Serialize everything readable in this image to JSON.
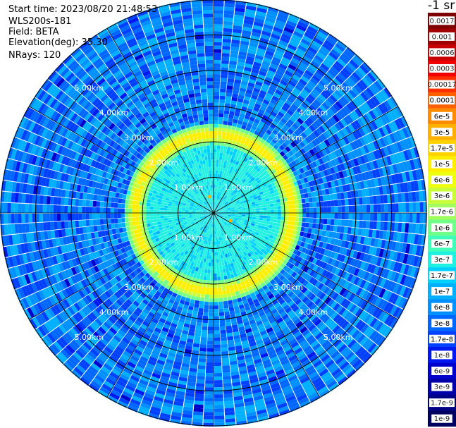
{
  "info": {
    "start_time": "Start time: 2023/08/20 21:48:53",
    "device": "WLS200s-181",
    "field": "Field: BETA",
    "elevation": "Elevation(deg): 35.30",
    "nrays": "NRays: 120"
  },
  "colorbar": {
    "unit": "-1 sr",
    "labels": [
      "0.0017",
      "0.001",
      "0.0006",
      "0.0003",
      "0.00017",
      "0.0001",
      "6e-5",
      "3e-5",
      "1.7e-5",
      "1e-5",
      "6e-6",
      "3e-6",
      "1.7e-6",
      "1e-6",
      "6e-7",
      "3e-7",
      "1.7e-7",
      "1e-7",
      "6e-8",
      "3e-8",
      "1.7e-8",
      "1e-8",
      "6e-9",
      "3e-9",
      "1.7e-9",
      "1e-9"
    ],
    "colors": [
      "#7f0000",
      "#a00000",
      "#c80000",
      "#f00000",
      "#ff3000",
      "#ff6000",
      "#ff8c00",
      "#ffb000",
      "#ffd200",
      "#ffee00",
      "#eeff10",
      "#c8ff38",
      "#a0ff5e",
      "#70ff88",
      "#40ffb8",
      "#20f0e0",
      "#00d0ff",
      "#00b0ff",
      "#0090ff",
      "#0068ff",
      "#0040ff",
      "#0018f0",
      "#0000cc",
      "#0000a8",
      "#000084",
      "#000060"
    ]
  },
  "chart_data": {
    "type": "heatmap",
    "projection": "polar-ppi",
    "field": "BETA",
    "rays": 120,
    "range_km_max": 6.0,
    "range_rings_km": [
      1,
      2,
      3,
      4,
      5
    ],
    "ring_labels": [
      "1.00km",
      "2.00km",
      "3.00km",
      "4.00km",
      "5.00km"
    ],
    "azimuth_spokes_deg": [
      0,
      30,
      60,
      90,
      120,
      150,
      180,
      210,
      240,
      270,
      300,
      330
    ],
    "features": {
      "near_field_level": "3e-7",
      "peak_ring_range_km": 2.2,
      "peak_ring_level": "1e-5",
      "far_field_level": "6e-8"
    }
  }
}
